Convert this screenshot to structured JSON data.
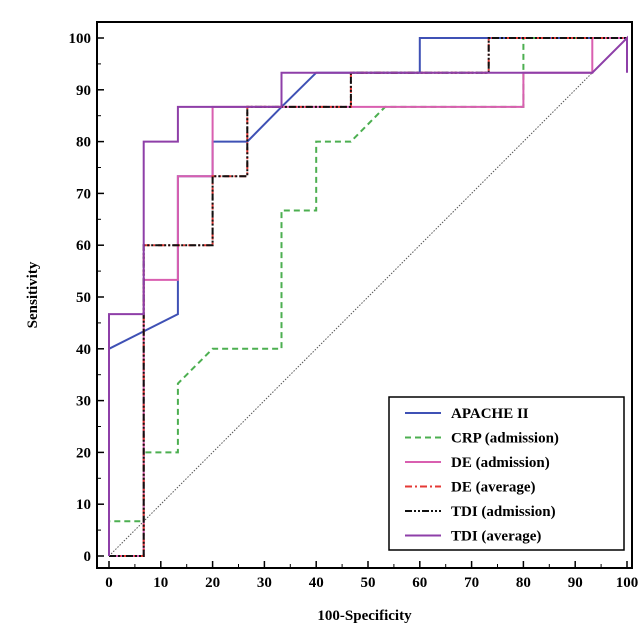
{
  "chart_data": {
    "type": "line",
    "title": "",
    "xlabel": "100-Specificity",
    "ylabel": "Sensitivity",
    "xlim": [
      0,
      100
    ],
    "ylim": [
      0,
      100
    ],
    "xticks": [
      0,
      10,
      20,
      30,
      40,
      50,
      60,
      70,
      80,
      90,
      100
    ],
    "yticks": [
      0,
      10,
      20,
      30,
      40,
      50,
      60,
      70,
      80,
      90,
      100
    ],
    "grid": false,
    "legend_position": "bottom-right",
    "reference_line": {
      "from": [
        0,
        0
      ],
      "to": [
        100,
        100
      ],
      "color": "#555555",
      "style": "dotted"
    },
    "series": [
      {
        "name": "APACHE II",
        "color": "#3f51b5",
        "style": "solid",
        "points": [
          [
            0,
            40
          ],
          [
            13.3,
            46.7
          ],
          [
            13.3,
            73.3
          ],
          [
            20,
            73.3
          ],
          [
            20,
            80
          ],
          [
            26.7,
            80
          ],
          [
            33.3,
            86.7
          ],
          [
            40,
            93.3
          ],
          [
            60,
            93.3
          ],
          [
            60,
            100
          ],
          [
            100,
            100
          ]
        ]
      },
      {
        "name": "CRP (admission)",
        "color": "#4caf50",
        "style": "dashed",
        "points": [
          [
            0,
            0
          ],
          [
            0,
            6.7
          ],
          [
            6.7,
            6.7
          ],
          [
            6.7,
            20
          ],
          [
            13.3,
            20
          ],
          [
            13.3,
            33.3
          ],
          [
            20,
            40
          ],
          [
            33.3,
            40
          ],
          [
            33.3,
            66.7
          ],
          [
            40,
            66.7
          ],
          [
            40,
            80
          ],
          [
            46.7,
            80
          ],
          [
            53.3,
            86.7
          ],
          [
            80,
            86.7
          ],
          [
            80,
            100
          ],
          [
            100,
            100
          ]
        ]
      },
      {
        "name": "DE (admission)",
        "color": "#d95fb0",
        "style": "solid",
        "points": [
          [
            0,
            0
          ],
          [
            6.7,
            0
          ],
          [
            6.7,
            53.3
          ],
          [
            13.3,
            53.3
          ],
          [
            13.3,
            73.3
          ],
          [
            20,
            73.3
          ],
          [
            20,
            86.7
          ],
          [
            80,
            86.7
          ],
          [
            80,
            93.3
          ],
          [
            93.3,
            93.3
          ],
          [
            93.3,
            100
          ],
          [
            100,
            100
          ]
        ]
      },
      {
        "name": "DE (average)",
        "color": "#e53935",
        "style": "dashdot",
        "points": [
          [
            0,
            0
          ],
          [
            6.7,
            0
          ],
          [
            6.7,
            60
          ],
          [
            20,
            60
          ],
          [
            20,
            73.3
          ],
          [
            26.7,
            73.3
          ],
          [
            26.7,
            86.7
          ],
          [
            46.7,
            86.7
          ],
          [
            46.7,
            93.3
          ],
          [
            73.3,
            93.3
          ],
          [
            73.3,
            100
          ],
          [
            100,
            100
          ]
        ]
      },
      {
        "name": "TDI (admission)",
        "color": "#111111",
        "style": "dashdotdot",
        "points": [
          [
            0,
            0
          ],
          [
            6.7,
            0
          ],
          [
            6.7,
            60
          ],
          [
            20,
            60
          ],
          [
            20,
            73.3
          ],
          [
            26.7,
            73.3
          ],
          [
            26.7,
            86.7
          ],
          [
            46.7,
            86.7
          ],
          [
            46.7,
            93.3
          ],
          [
            73.3,
            93.3
          ],
          [
            73.3,
            100
          ],
          [
            100,
            100
          ]
        ]
      },
      {
        "name": "TDI (average)",
        "color": "#8e3fa8",
        "style": "solid",
        "points": [
          [
            0,
            0
          ],
          [
            0,
            46.7
          ],
          [
            6.7,
            46.7
          ],
          [
            6.7,
            80
          ],
          [
            13.3,
            80
          ],
          [
            13.3,
            86.7
          ],
          [
            33.3,
            86.7
          ],
          [
            33.3,
            93.3
          ],
          [
            93.3,
            93.3
          ],
          [
            100,
            100
          ],
          [
            100,
            93.3
          ]
        ]
      }
    ]
  }
}
